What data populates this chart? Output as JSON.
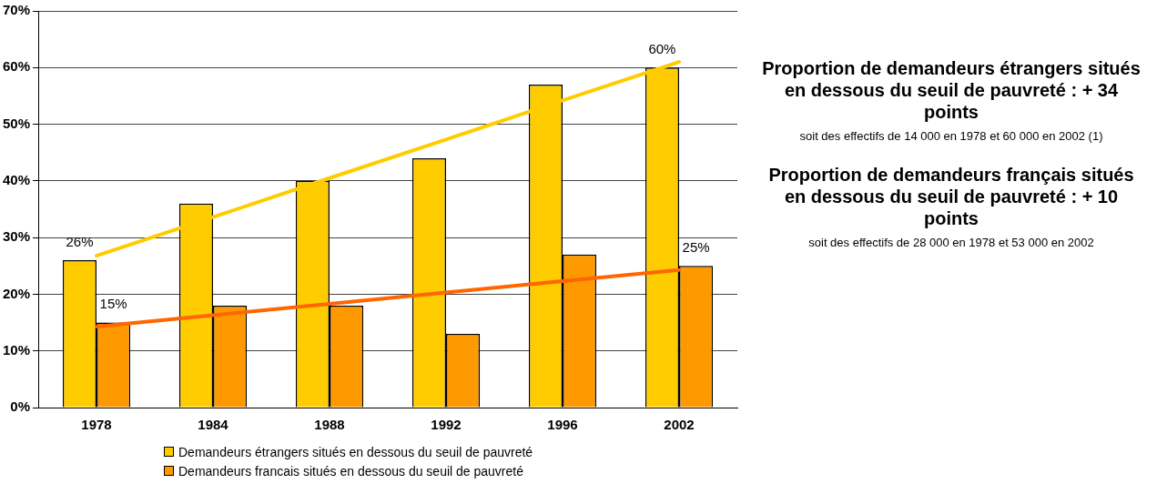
{
  "chart_data": {
    "type": "bar",
    "categories": [
      "1978",
      "1984",
      "1988",
      "1992",
      "1996",
      "2002"
    ],
    "series": [
      {
        "name": "Demandeurs étrangers situés en dessous du seuil de pauvreté",
        "color": "#ffcc00",
        "values": [
          26,
          36,
          40,
          44,
          57,
          60
        ],
        "value_labels": [
          "26%",
          null,
          null,
          null,
          null,
          "60%"
        ]
      },
      {
        "name": "Demandeurs francais situés en dessous du seuil de pauvreté",
        "color": "#ff9900",
        "values": [
          15,
          18,
          18,
          13,
          27,
          25
        ],
        "value_labels": [
          "15%",
          null,
          null,
          null,
          null,
          "25%"
        ]
      },
      {
        "type": "line",
        "color": "#ffcc00",
        "values": [
          26.8,
          33.6,
          40.5,
          47.3,
          54.2,
          61
        ]
      },
      {
        "type": "line",
        "color": "#ff6600",
        "values": [
          14.3,
          16.3,
          18.3,
          20.3,
          22.3,
          24.3
        ]
      }
    ],
    "ylim": [
      0,
      70
    ],
    "yticks": [
      {
        "value": 0,
        "label": "0%"
      },
      {
        "value": 10,
        "label": "10%"
      },
      {
        "value": 20,
        "label": "20%"
      },
      {
        "value": 30,
        "label": "30%"
      },
      {
        "value": 40,
        "label": "40%"
      },
      {
        "value": 50,
        "label": "50%"
      },
      {
        "value": 60,
        "label": "60%"
      },
      {
        "value": 70,
        "label": "70%"
      }
    ],
    "grid": "y",
    "legend": "bottom",
    "marker": "none",
    "annotations": [
      "Proportion de demandeurs étrangers situés en dessous du seuil de pauvreté : + 34 points",
      "soit des effectifs de 14 000 en 1978 et 60 000 en 2002 (1)",
      "Proportion de demandeurs français situés en dessous du seuil de pauvreté : + 10 points",
      "soit des effectifs de 28 000 en 1978 et 53 000 en 2002"
    ]
  }
}
